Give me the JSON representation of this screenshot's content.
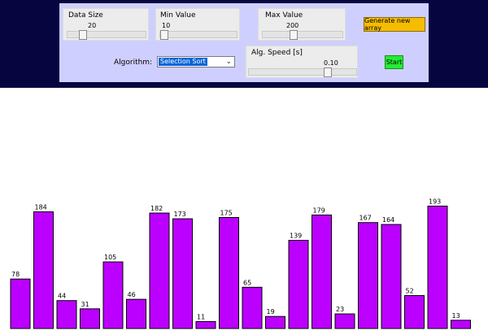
{
  "controls": {
    "data_size": {
      "label": "Data Size",
      "value": "20",
      "level": 0.16
    },
    "min_value": {
      "label": "Min Value",
      "value": "10",
      "level": 0.0
    },
    "max_value": {
      "label": "Max Value",
      "value": "200",
      "level": 0.38
    },
    "generate_button": {
      "label": "Generate new array",
      "color": "#f5bc00"
    },
    "algorithm": {
      "label": "Algorithm:",
      "selected": "Selection Sort"
    },
    "speed": {
      "label": "Alg. Speed [s]",
      "value": "0.10",
      "level": 0.75
    },
    "start_button": {
      "label": "Start",
      "color": "#22ee33"
    }
  },
  "colors": {
    "background": "#06053f",
    "panel": "#cfcfff",
    "bar": "#bb00ff"
  },
  "chart_data": {
    "type": "bar",
    "values": [
      78,
      184,
      44,
      31,
      105,
      46,
      182,
      173,
      11,
      175,
      65,
      19,
      139,
      179,
      23,
      167,
      164,
      52,
      193,
      13
    ],
    "ylim": [
      0,
      200
    ]
  }
}
